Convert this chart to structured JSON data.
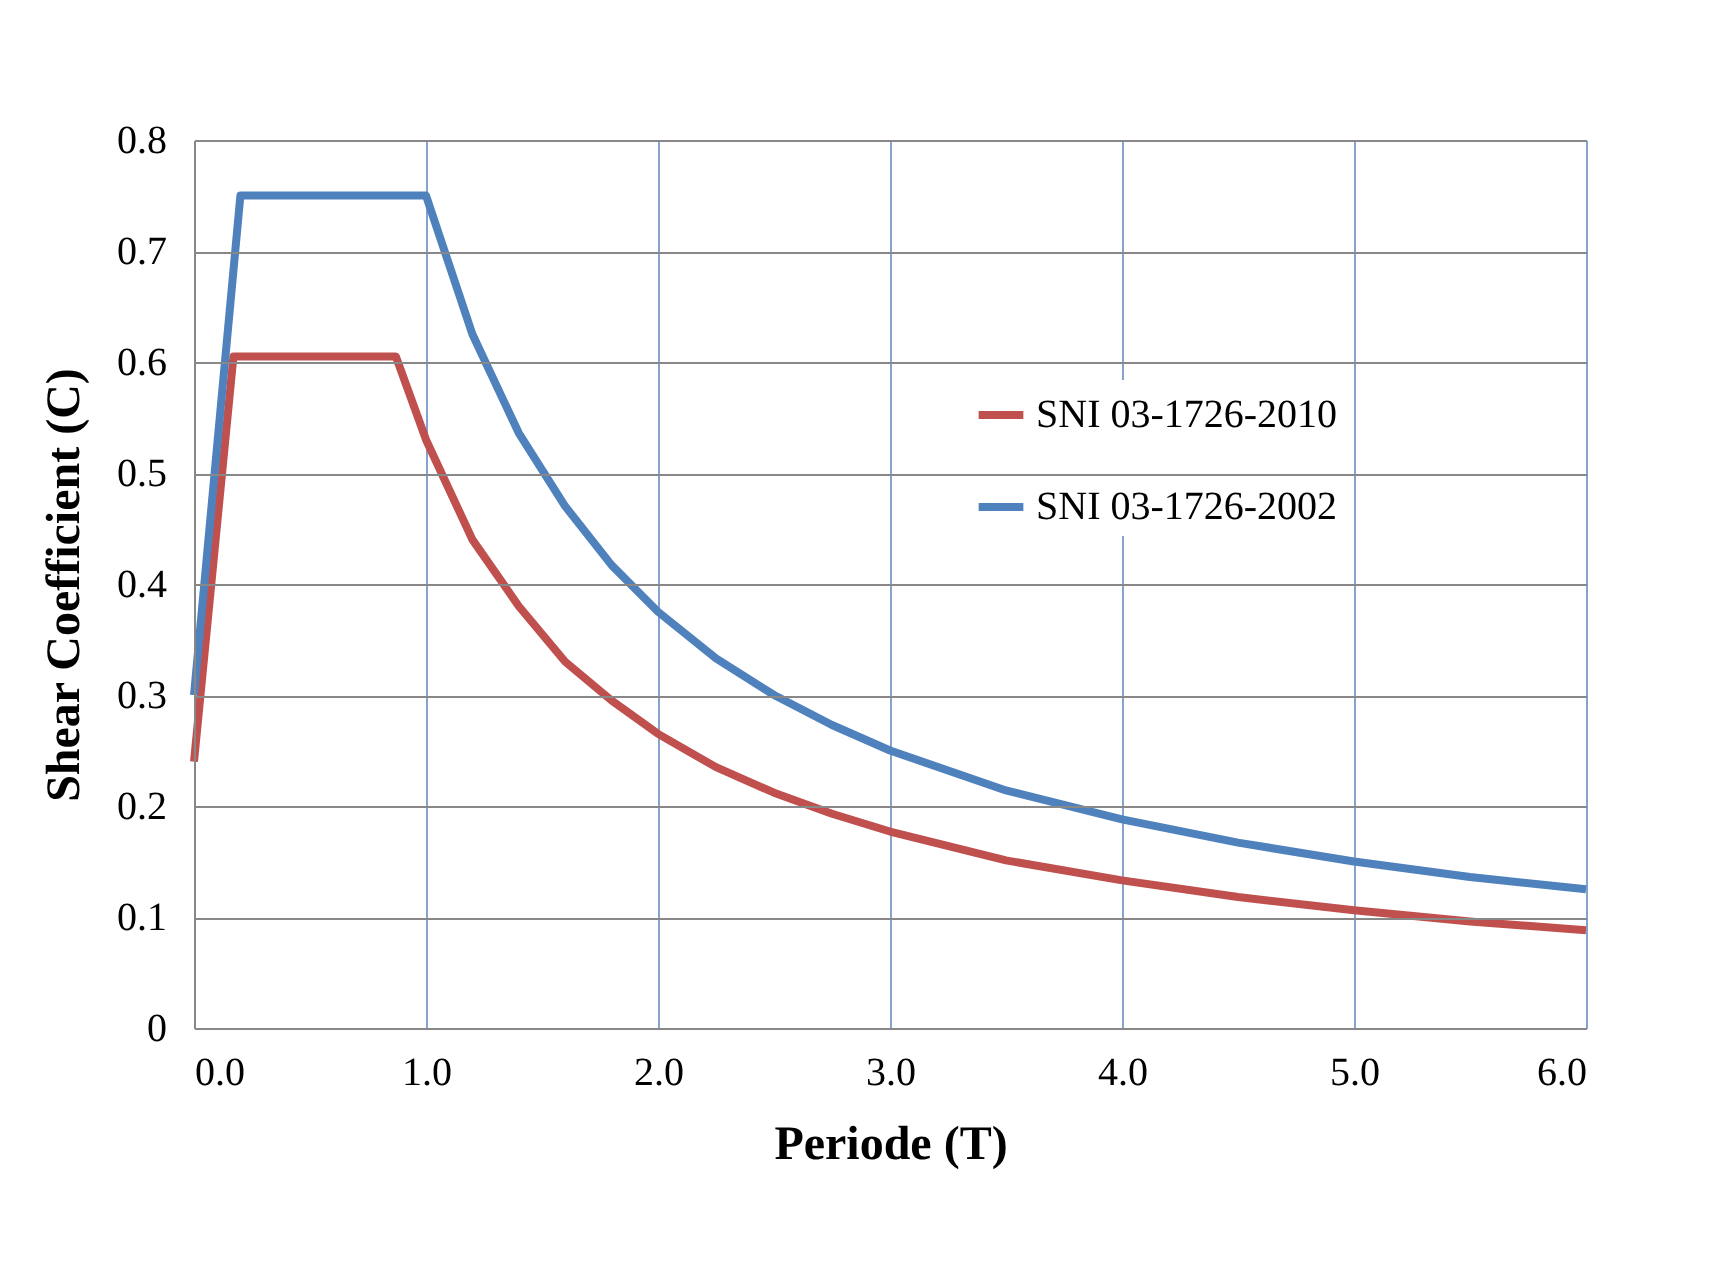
{
  "chart_data": {
    "type": "line",
    "xlabel": "Periode (T)",
    "ylabel": "Shear Coefficient (C)",
    "xlim": [
      0,
      6
    ],
    "ylim": [
      0,
      0.8
    ],
    "xticks": [
      {
        "value": 0,
        "label": "0.0"
      },
      {
        "value": 1,
        "label": "1.0"
      },
      {
        "value": 2,
        "label": "2.0"
      },
      {
        "value": 3,
        "label": "3.0"
      },
      {
        "value": 4,
        "label": "4.0"
      },
      {
        "value": 5,
        "label": "5.0"
      },
      {
        "value": 6,
        "label": "6.0"
      }
    ],
    "yticks": [
      0,
      0.1,
      0.2,
      0.3,
      0.4,
      0.5,
      0.6,
      0.7,
      0.8
    ],
    "grid": true,
    "legend": "top right",
    "marker": "none",
    "line_style": "solid",
    "series": [
      {
        "name": "SNI 03-1726-2010",
        "color": "#c0504d",
        "x": [
          0,
          0.17,
          0.87,
          1.0,
          1.2,
          1.4,
          1.6,
          1.8,
          2.0,
          2.25,
          2.5,
          2.75,
          3.0,
          3.5,
          4.0,
          4.5,
          5.0,
          5.5,
          6.0
        ],
        "values": [
          0.24,
          0.605,
          0.605,
          0.53,
          0.44,
          0.38,
          0.33,
          0.295,
          0.265,
          0.235,
          0.212,
          0.193,
          0.177,
          0.151,
          0.133,
          0.118,
          0.106,
          0.096,
          0.088
        ]
      },
      {
        "name": "SNI 03-1726-2002",
        "color": "#4f81bd",
        "x": [
          0,
          0.2,
          1.0,
          1.2,
          1.4,
          1.6,
          1.8,
          2.0,
          2.25,
          2.5,
          2.75,
          3.0,
          3.5,
          4.0,
          4.5,
          5.0,
          5.5,
          6.0
        ],
        "values": [
          0.3,
          0.75,
          0.75,
          0.625,
          0.536,
          0.47,
          0.417,
          0.375,
          0.333,
          0.3,
          0.273,
          0.25,
          0.214,
          0.188,
          0.167,
          0.15,
          0.136,
          0.125
        ]
      }
    ]
  }
}
